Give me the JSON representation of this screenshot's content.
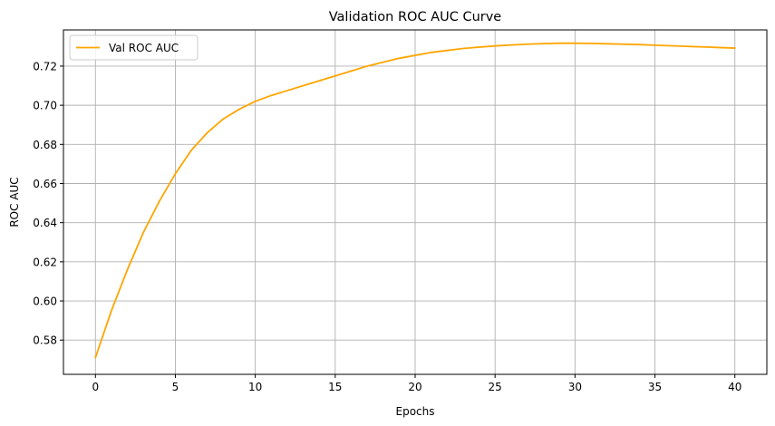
{
  "chart_data": {
    "type": "line",
    "title": "Validation ROC AUC Curve",
    "xlabel": "Epochs",
    "ylabel": "ROC AUC",
    "xlim": [
      -2,
      42
    ],
    "ylim": [
      0.5625,
      0.7385
    ],
    "xticks": [
      0,
      5,
      10,
      15,
      20,
      25,
      30,
      35,
      40
    ],
    "yticks": [
      0.58,
      0.6,
      0.62,
      0.64,
      0.66,
      0.68,
      0.7,
      0.72
    ],
    "ytick_labels": [
      "0.58",
      "0.60",
      "0.62",
      "0.64",
      "0.66",
      "0.68",
      "0.70",
      "0.72"
    ],
    "grid": true,
    "legend_position": "top-left",
    "series": [
      {
        "name": "Val ROC AUC",
        "color": "#ffa500",
        "x": [
          0,
          1,
          2,
          3,
          4,
          5,
          6,
          7,
          8,
          9,
          10,
          11,
          12,
          13,
          14,
          15,
          16,
          17,
          18,
          19,
          20,
          21,
          22,
          23,
          24,
          25,
          26,
          27,
          28,
          29,
          30,
          31,
          32,
          33,
          34,
          35,
          36,
          37,
          38,
          39,
          40
        ],
        "y": [
          0.571,
          0.595,
          0.616,
          0.635,
          0.651,
          0.665,
          0.677,
          0.686,
          0.693,
          0.698,
          0.702,
          0.705,
          0.7075,
          0.71,
          0.7125,
          0.715,
          0.7175,
          0.72,
          0.722,
          0.724,
          0.7255,
          0.727,
          0.728,
          0.729,
          0.7297,
          0.7303,
          0.7308,
          0.7312,
          0.7315,
          0.7317,
          0.7317,
          0.7316,
          0.7314,
          0.7312,
          0.731,
          0.7307,
          0.7304,
          0.7301,
          0.7298,
          0.7295,
          0.7292
        ]
      }
    ]
  }
}
